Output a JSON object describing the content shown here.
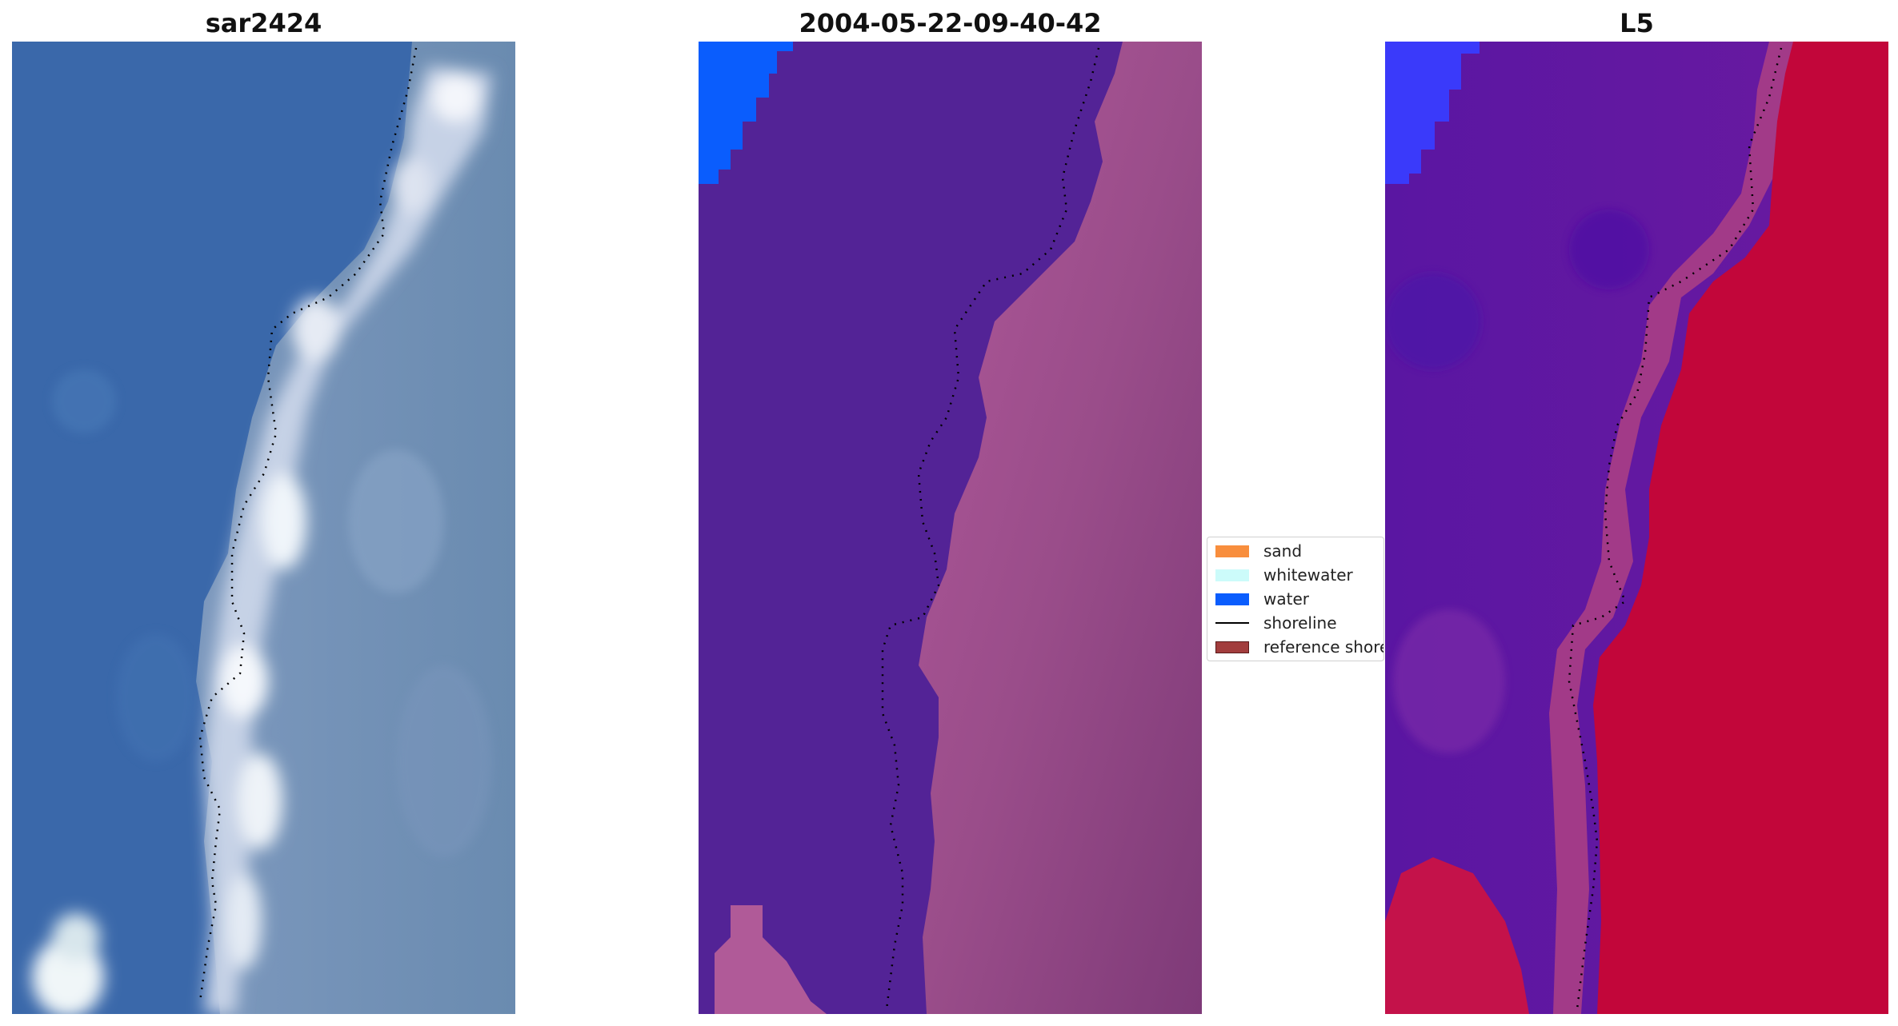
{
  "panels": [
    {
      "title": "sar2424",
      "description_colors": {
        "water": "#3864a8",
        "light": "#dce6f0"
      }
    },
    {
      "title": "2004-05-22-09-40-42",
      "description_colors": {
        "water": "#532396",
        "land": "#9a4d8a"
      }
    },
    {
      "title": "L5",
      "description_colors": {
        "water": "#5a1aa0",
        "land": "#c2063a"
      }
    }
  ],
  "legend": {
    "items": [
      {
        "label": "sand",
        "color": "#f88e3d",
        "kind": "patch"
      },
      {
        "label": "whitewater",
        "color": "#ccfbfa",
        "kind": "patch"
      },
      {
        "label": "water",
        "color": "#0a5dfd",
        "kind": "patch"
      },
      {
        "label": "shoreline",
        "color": "#000000",
        "kind": "line"
      },
      {
        "label": "reference shoreline",
        "color": "#a23d3d",
        "kind": "patch"
      }
    ]
  },
  "colors": {
    "background": "#ffffff",
    "water_patch_panel2": "#0a5dfd",
    "water_patch_panel3": "#3a3afa",
    "shoreline_dots": "#000000"
  }
}
